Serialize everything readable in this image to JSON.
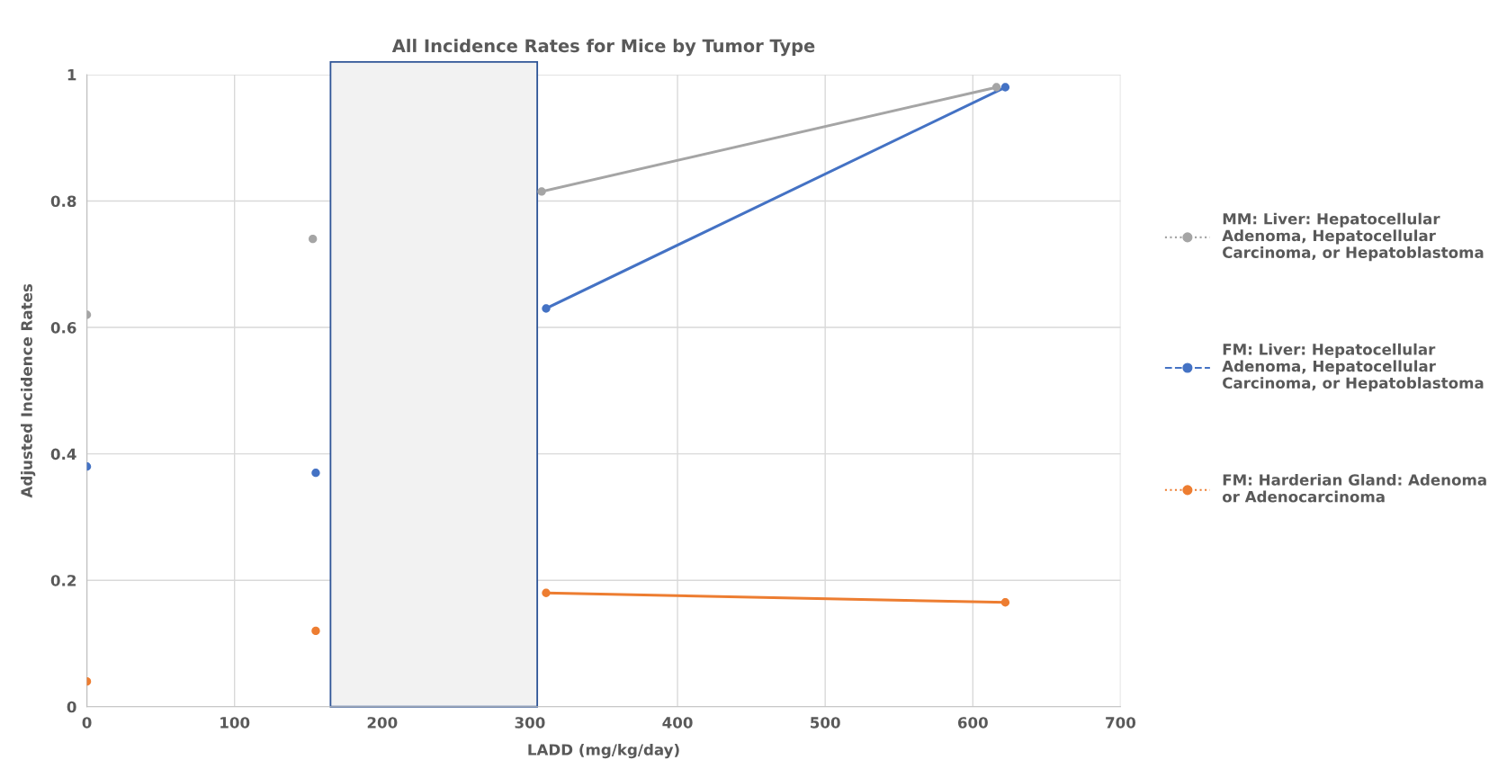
{
  "chart_data": {
    "type": "scatter",
    "title": "All Incidence Rates for Mice by Tumor Type",
    "xlabel": "LADD (mg/kg/day)",
    "ylabel": "Adjusted Incidence Rates",
    "series": [
      {
        "name": "MM: Liver: Hepatocellular Adenoma, Hepatocellular Carcinoma, or Hepatoblastoma",
        "color": "#a5a5a5",
        "line_style": "dotted",
        "x": [
          0,
          153,
          308,
          616
        ],
        "values": [
          0.62,
          0.74,
          0.815,
          0.98
        ]
      },
      {
        "name": "FM: Liver: Hepatocellular Adenoma, Hepatocellular Carcinoma, or Hepatoblastoma",
        "color": "#4472c4",
        "line_style": "dashed",
        "x": [
          0,
          155,
          311,
          622
        ],
        "values": [
          0.38,
          0.37,
          0.63,
          0.98
        ]
      },
      {
        "name": "FM: Harderian Gland: Adenoma or Adenocarcinoma",
        "color": "#ed7d31",
        "line_style": "dotted",
        "x": [
          0,
          155,
          311,
          622
        ],
        "values": [
          0.04,
          0.12,
          0.18,
          0.165
        ]
      },
      {
        "type": "line",
        "marker": "none",
        "color": "#a5a5a5",
        "x": [
          308,
          616
        ],
        "values": [
          0.815,
          0.98
        ]
      },
      {
        "type": "line",
        "marker": "none",
        "color": "#4472c4",
        "x": [
          311,
          622
        ],
        "values": [
          0.63,
          0.98
        ]
      },
      {
        "type": "line",
        "marker": "none",
        "color": "#ed7d31",
        "x": [
          311,
          622
        ],
        "values": [
          0.18,
          0.165
        ]
      }
    ],
    "bands": [
      {
        "axis": "x",
        "from": 165,
        "to": 305,
        "color": "#f2f2f2"
      }
    ],
    "xlim": [
      0,
      700
    ],
    "xticks": [
      0,
      100,
      200,
      300,
      400,
      500,
      600,
      700
    ],
    "ylim": [
      0,
      1
    ],
    "yticks": [
      0,
      0.2,
      0.4,
      0.6,
      0.8,
      1
    ],
    "grid": true,
    "legend": "right",
    "marker": "circle"
  }
}
